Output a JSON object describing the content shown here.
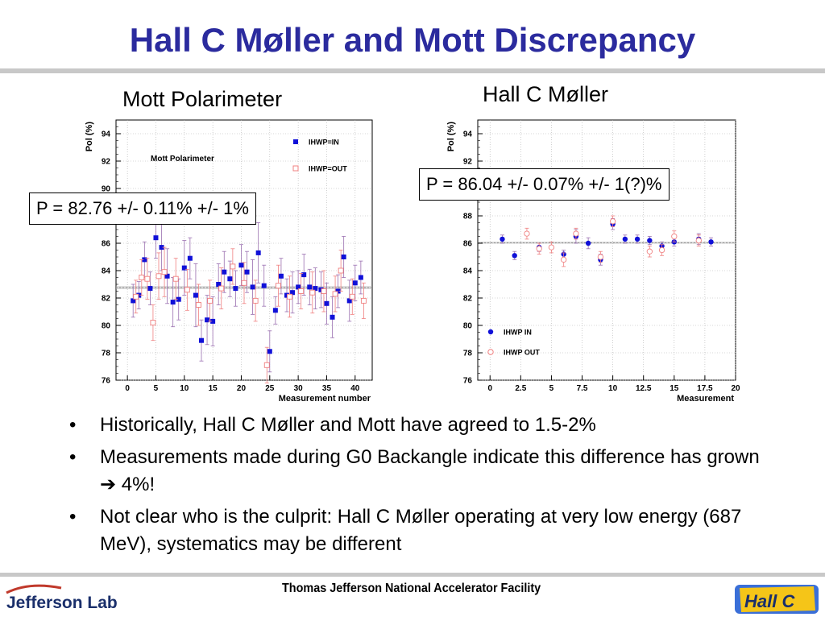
{
  "slide": {
    "title": "Hall C Møller and Mott Discrepancy",
    "footer": "Thomas Jefferson National Accelerator Facility",
    "logo_left": "Jefferson Lab",
    "logo_right": "Hall C"
  },
  "captions": {
    "left": "Mott Polarimeter",
    "right": "Hall C Møller"
  },
  "result_boxes": {
    "left": "P = 82.76 +/- 0.11% +/- 1%",
    "right": "P = 86.04 +/- 0.07% +/- 1(?)%"
  },
  "bullets": [
    {
      "text": "Historically, Hall C Møller and Mott have agreed to 1.5-2%"
    },
    {
      "text": "Measurements made during G0 Backangle indicate this difference has grown ➔ 4%!"
    },
    {
      "text": "Not clear who is the culprit: Hall C Møller operating at very low energy (687 MeV), systematics may be different"
    }
  ],
  "colors": {
    "title": "#2b2b9e",
    "series_in": "#1010d8",
    "series_out": "#f08080",
    "errorbar_in": "#9a6fb0",
    "mean_line": "#b0b0b0"
  },
  "chart_data": [
    {
      "type": "scatter",
      "title": "Mott Polarimeter",
      "xlabel": "Measurement number",
      "ylabel": "Pol (%)",
      "xlim": [
        -2,
        43
      ],
      "ylim": [
        76,
        95
      ],
      "xticks": [
        0,
        5,
        10,
        15,
        20,
        25,
        30,
        35,
        40
      ],
      "yticks": [
        76,
        78,
        80,
        82,
        84,
        86,
        88,
        90,
        92,
        94
      ],
      "mean": 82.76,
      "mean_band": 0.11,
      "legend_position": "top-right",
      "series": [
        {
          "name": "IHWP=IN",
          "marker": "filled-square",
          "points": [
            {
              "x": 1,
              "y": 81.8,
              "err": 1.2
            },
            {
              "x": 2,
              "y": 82.2,
              "err": 1.0
            },
            {
              "x": 3,
              "y": 84.8,
              "err": 1.3
            },
            {
              "x": 4,
              "y": 82.7,
              "err": 1.2
            },
            {
              "x": 5,
              "y": 86.4,
              "err": 1.5
            },
            {
              "x": 6,
              "y": 85.7,
              "err": 1.7
            },
            {
              "x": 7,
              "y": 83.6,
              "err": 2.0
            },
            {
              "x": 8,
              "y": 81.7,
              "err": 1.8
            },
            {
              "x": 9,
              "y": 81.9,
              "err": 1.5
            },
            {
              "x": 10,
              "y": 84.2,
              "err": 2.0
            },
            {
              "x": 11,
              "y": 84.9,
              "err": 1.5
            },
            {
              "x": 12,
              "y": 82.2,
              "err": 2.3
            },
            {
              "x": 13,
              "y": 78.9,
              "err": 1.5
            },
            {
              "x": 14,
              "y": 80.4,
              "err": 1.8
            },
            {
              "x": 15,
              "y": 80.3,
              "err": 1.8
            },
            {
              "x": 16,
              "y": 83.0,
              "err": 1.5
            },
            {
              "x": 17,
              "y": 83.9,
              "err": 1.5
            },
            {
              "x": 18,
              "y": 83.4,
              "err": 1.3
            },
            {
              "x": 19,
              "y": 82.7,
              "err": 1.3
            },
            {
              "x": 20,
              "y": 84.4,
              "err": 1.5
            },
            {
              "x": 21,
              "y": 83.9,
              "err": 1.5
            },
            {
              "x": 22,
              "y": 82.8,
              "err": 2.0
            },
            {
              "x": 23,
              "y": 85.3,
              "err": 2.2
            },
            {
              "x": 24,
              "y": 82.9,
              "err": 1.5
            },
            {
              "x": 25,
              "y": 78.1,
              "err": 1.5
            },
            {
              "x": 26,
              "y": 81.1,
              "err": 1.0
            },
            {
              "x": 27,
              "y": 83.6,
              "err": 1.3
            },
            {
              "x": 28,
              "y": 82.2,
              "err": 1.2
            },
            {
              "x": 29,
              "y": 82.4,
              "err": 1.5
            },
            {
              "x": 30,
              "y": 82.8,
              "err": 1.2
            },
            {
              "x": 31,
              "y": 83.7,
              "err": 1.5
            },
            {
              "x": 32,
              "y": 82.8,
              "err": 1.3
            },
            {
              "x": 33,
              "y": 82.7,
              "err": 1.5
            },
            {
              "x": 34,
              "y": 82.6,
              "err": 1.3
            },
            {
              "x": 35,
              "y": 81.6,
              "err": 1.5
            },
            {
              "x": 36,
              "y": 80.6,
              "err": 1.5
            },
            {
              "x": 37,
              "y": 82.5,
              "err": 1.2
            },
            {
              "x": 38,
              "y": 85.0,
              "err": 1.5
            },
            {
              "x": 39,
              "y": 81.8,
              "err": 1.5
            },
            {
              "x": 40,
              "y": 83.1,
              "err": 1.3
            },
            {
              "x": 41,
              "y": 83.5,
              "err": 1.2
            }
          ]
        },
        {
          "name": "IHWP=OUT",
          "marker": "open-square",
          "points": [
            {
              "x": 1.5,
              "y": 82.1,
              "err": 1.2
            },
            {
              "x": 2.5,
              "y": 83.5,
              "err": 1.3
            },
            {
              "x": 3.5,
              "y": 83.4,
              "err": 1.5
            },
            {
              "x": 4.5,
              "y": 80.2,
              "err": 1.3
            },
            {
              "x": 5.5,
              "y": 83.6,
              "err": 1.7
            },
            {
              "x": 6.5,
              "y": 83.9,
              "err": 1.8
            },
            {
              "x": 8.5,
              "y": 83.4,
              "err": 1.5
            },
            {
              "x": 10.5,
              "y": 82.6,
              "err": 1.5
            },
            {
              "x": 12.5,
              "y": 81.5,
              "err": 1.5
            },
            {
              "x": 14.5,
              "y": 81.8,
              "err": 1.5
            },
            {
              "x": 16.5,
              "y": 82.7,
              "err": 1.5
            },
            {
              "x": 18.5,
              "y": 84.3,
              "err": 1.3
            },
            {
              "x": 20.5,
              "y": 83.1,
              "err": 1.5
            },
            {
              "x": 22.5,
              "y": 81.8,
              "err": 1.5
            },
            {
              "x": 24.5,
              "y": 77.1,
              "err": 1.3
            },
            {
              "x": 26.5,
              "y": 82.9,
              "err": 1.5
            },
            {
              "x": 28.5,
              "y": 82.1,
              "err": 1.5
            },
            {
              "x": 30.5,
              "y": 82.5,
              "err": 1.3
            },
            {
              "x": 32.5,
              "y": 82.4,
              "err": 1.5
            },
            {
              "x": 34.5,
              "y": 82.5,
              "err": 1.5
            },
            {
              "x": 36.5,
              "y": 82.3,
              "err": 1.3
            },
            {
              "x": 37.5,
              "y": 84.0,
              "err": 1.5
            },
            {
              "x": 39.5,
              "y": 82.1,
              "err": 1.3
            },
            {
              "x": 41.5,
              "y": 81.8,
              "err": 1.3
            }
          ]
        }
      ]
    },
    {
      "type": "scatter",
      "title": "Hall C Møller",
      "xlabel": "Measurement",
      "ylabel": "Pol (%)",
      "xlim": [
        -1,
        20
      ],
      "ylim": [
        76,
        95
      ],
      "xticks": [
        0,
        2.5,
        5,
        7.5,
        10,
        12.5,
        15,
        17.5,
        20
      ],
      "xtick_labels": [
        "0",
        "2.5",
        "5",
        "7.5",
        "10",
        "12.5",
        "15",
        "17.5",
        "20"
      ],
      "yticks": [
        76,
        78,
        80,
        82,
        84,
        86,
        88,
        90,
        92,
        94
      ],
      "mean": 86.04,
      "mean_band": 0.07,
      "legend_position": "bottom-left",
      "series": [
        {
          "name": "IHWP IN",
          "marker": "filled-circle",
          "points": [
            {
              "x": 1,
              "y": 86.3,
              "err": 0.3
            },
            {
              "x": 2,
              "y": 85.1,
              "err": 0.3
            },
            {
              "x": 4,
              "y": 85.7,
              "err": 0.3
            },
            {
              "x": 6,
              "y": 85.2,
              "err": 0.3
            },
            {
              "x": 7,
              "y": 86.5,
              "err": 0.5
            },
            {
              "x": 8,
              "y": 86.0,
              "err": 0.4
            },
            {
              "x": 9,
              "y": 84.8,
              "err": 0.4
            },
            {
              "x": 10,
              "y": 87.4,
              "err": 0.4
            },
            {
              "x": 11,
              "y": 86.3,
              "err": 0.3
            },
            {
              "x": 12,
              "y": 86.3,
              "err": 0.3
            },
            {
              "x": 13,
              "y": 86.2,
              "err": 0.3
            },
            {
              "x": 14,
              "y": 85.8,
              "err": 0.3
            },
            {
              "x": 15,
              "y": 86.1,
              "err": 0.3
            },
            {
              "x": 17,
              "y": 86.3,
              "err": 0.4
            },
            {
              "x": 18,
              "y": 86.1,
              "err": 0.3
            }
          ]
        },
        {
          "name": "IHWP OUT",
          "marker": "open-circle",
          "points": [
            {
              "x": 3,
              "y": 86.7,
              "err": 0.4
            },
            {
              "x": 4,
              "y": 85.6,
              "err": 0.4
            },
            {
              "x": 5,
              "y": 85.7,
              "err": 0.4
            },
            {
              "x": 6,
              "y": 84.8,
              "err": 0.5
            },
            {
              "x": 7,
              "y": 86.7,
              "err": 0.4
            },
            {
              "x": 9,
              "y": 85.0,
              "err": 0.4
            },
            {
              "x": 10,
              "y": 87.6,
              "err": 0.4
            },
            {
              "x": 13,
              "y": 85.4,
              "err": 0.4
            },
            {
              "x": 14,
              "y": 85.5,
              "err": 0.4
            },
            {
              "x": 15,
              "y": 86.5,
              "err": 0.4
            },
            {
              "x": 17,
              "y": 86.2,
              "err": 0.4
            }
          ]
        }
      ]
    }
  ]
}
